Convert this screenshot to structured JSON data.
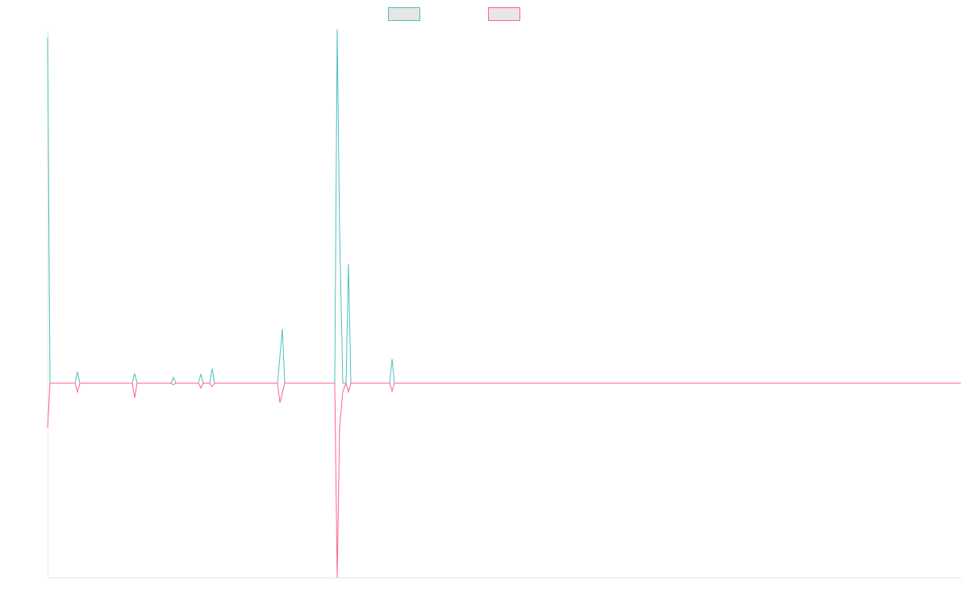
{
  "chart_data": {
    "type": "line",
    "x": [
      0,
      3,
      34,
      37,
      40,
      105,
      108,
      111,
      153,
      156,
      159,
      187,
      190,
      193,
      201,
      204,
      207,
      285,
      288,
      291,
      294,
      356,
      359,
      362,
      366,
      370,
      373,
      376,
      424,
      427,
      430,
      1132
    ],
    "series": [
      {
        "color": "#4bc0c0",
        "values": [
          428,
          0,
          0,
          14,
          0,
          0,
          12,
          0,
          0,
          7,
          0,
          0,
          11,
          0,
          0,
          18,
          0,
          0,
          33,
          67,
          0,
          0,
          439,
          188,
          0,
          0,
          148,
          0,
          0,
          30,
          0,
          0
        ]
      },
      {
        "color": "#ff6384",
        "values": [
          -55,
          0,
          0,
          -11,
          0,
          0,
          -18,
          0,
          0,
          -2,
          0,
          0,
          -6,
          0,
          0,
          -4,
          0,
          0,
          -24,
          -12,
          0,
          0,
          -241,
          -55,
          -10,
          0,
          -11,
          0,
          0,
          -10,
          0,
          0
        ]
      }
    ],
    "xlim": [
      0,
      1132
    ],
    "ylim": [
      -241,
      439
    ]
  }
}
